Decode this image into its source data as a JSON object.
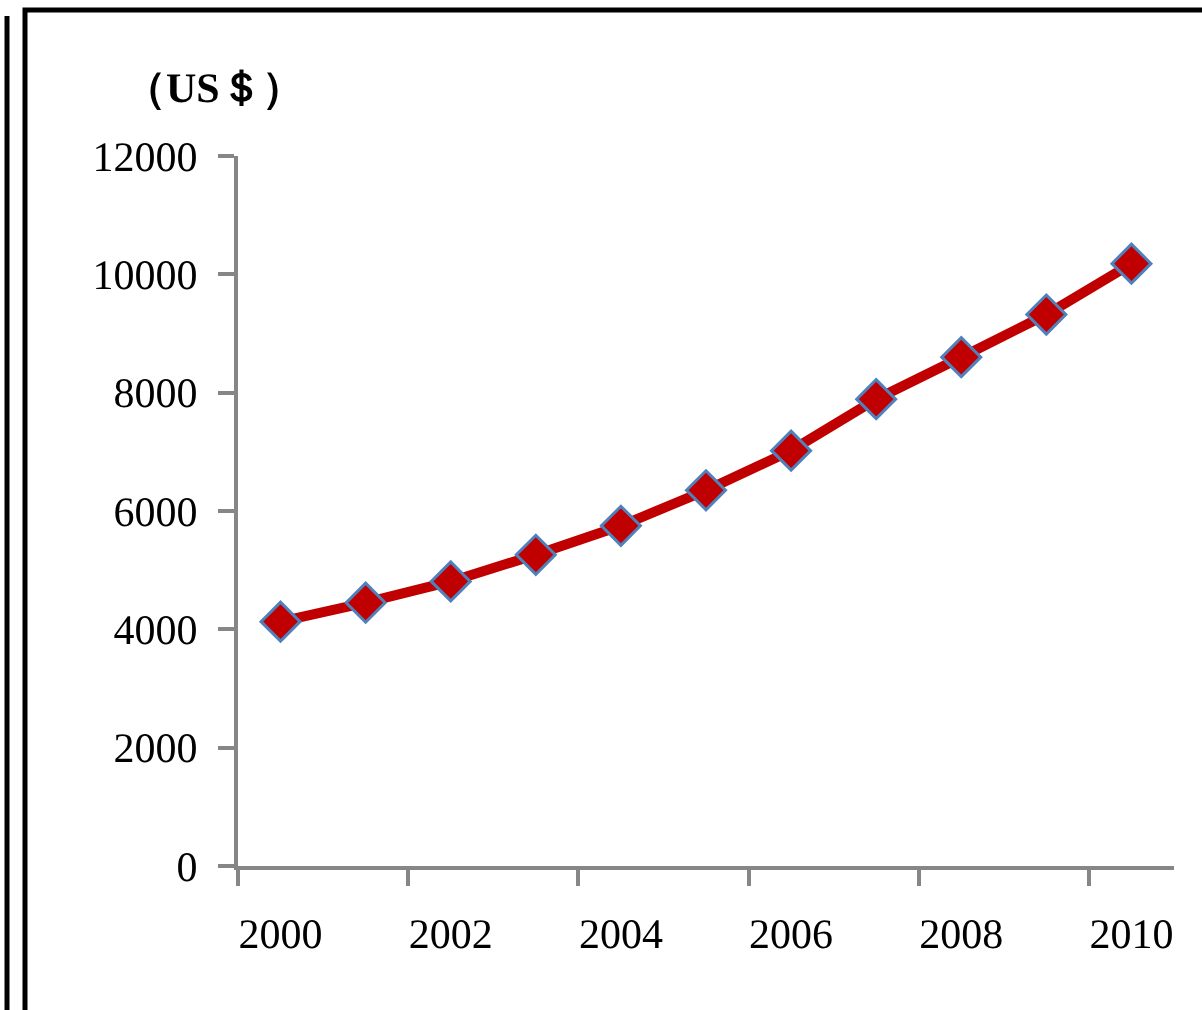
{
  "chart_data": {
    "type": "line",
    "ylabel": "（US＄）",
    "categories": [
      "2000",
      null,
      "2002",
      null,
      "2004",
      null,
      "2006",
      null,
      "2008",
      null,
      "2010"
    ],
    "series": [
      {
        "color": "#c00000",
        "values": [
          4130,
          4450,
          4810,
          5260,
          5750,
          6350,
          7020,
          7890,
          8600,
          9320,
          10180
        ]
      }
    ],
    "ylim": [
      0,
      12000
    ],
    "yticks": [
      0,
      2000,
      4000,
      6000,
      8000,
      10000,
      12000
    ],
    "marker": "diamond",
    "line_style": "solid"
  }
}
